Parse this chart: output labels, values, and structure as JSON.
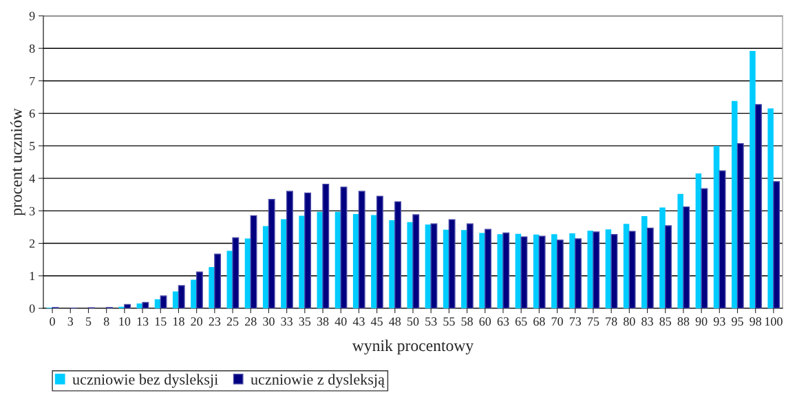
{
  "chart_data": {
    "type": "bar",
    "xlabel": "wynik procentowy",
    "ylabel": "procent uczniów",
    "categories": [
      "0",
      "3",
      "5",
      "8",
      "10",
      "13",
      "15",
      "18",
      "20",
      "23",
      "25",
      "28",
      "30",
      "33",
      "35",
      "38",
      "40",
      "43",
      "45",
      "48",
      "50",
      "53",
      "55",
      "58",
      "60",
      "63",
      "65",
      "68",
      "70",
      "73",
      "75",
      "78",
      "80",
      "83",
      "85",
      "88",
      "90",
      "93",
      "95",
      "98",
      "100"
    ],
    "series": [
      {
        "name": "uczniowie bez dysleksji",
        "color": "#00ccff",
        "values": [
          0.02,
          null,
          null,
          null,
          0.05,
          0.15,
          0.28,
          0.52,
          0.88,
          1.27,
          1.77,
          2.15,
          2.53,
          2.74,
          2.85,
          2.97,
          2.97,
          2.9,
          2.87,
          2.71,
          2.65,
          2.58,
          2.42,
          2.41,
          2.32,
          2.28,
          2.29,
          2.27,
          2.28,
          2.31,
          2.39,
          2.43,
          2.6,
          2.84,
          3.1,
          3.52,
          4.15,
          5.0,
          6.38,
          7.92,
          6.15
        ]
      },
      {
        "name": "uczniowie z dysleksją",
        "color": "#000080",
        "values": [
          0.03,
          0.01,
          0.02,
          0.03,
          0.12,
          0.18,
          0.38,
          0.7,
          1.12,
          1.67,
          2.17,
          2.85,
          3.35,
          3.6,
          3.55,
          3.82,
          3.73,
          3.6,
          3.45,
          3.28,
          2.88,
          2.6,
          2.73,
          2.6,
          2.43,
          2.32,
          2.2,
          2.22,
          2.1,
          2.14,
          2.35,
          2.27,
          2.37,
          2.47,
          2.54,
          3.12,
          3.68,
          4.23,
          5.07,
          6.27,
          3.9
        ]
      }
    ],
    "ylim": [
      0,
      9
    ],
    "yticks": [
      0,
      1,
      2,
      3,
      4,
      5,
      6,
      7,
      8,
      9
    ],
    "grid": "y",
    "legend": "bottom left"
  }
}
